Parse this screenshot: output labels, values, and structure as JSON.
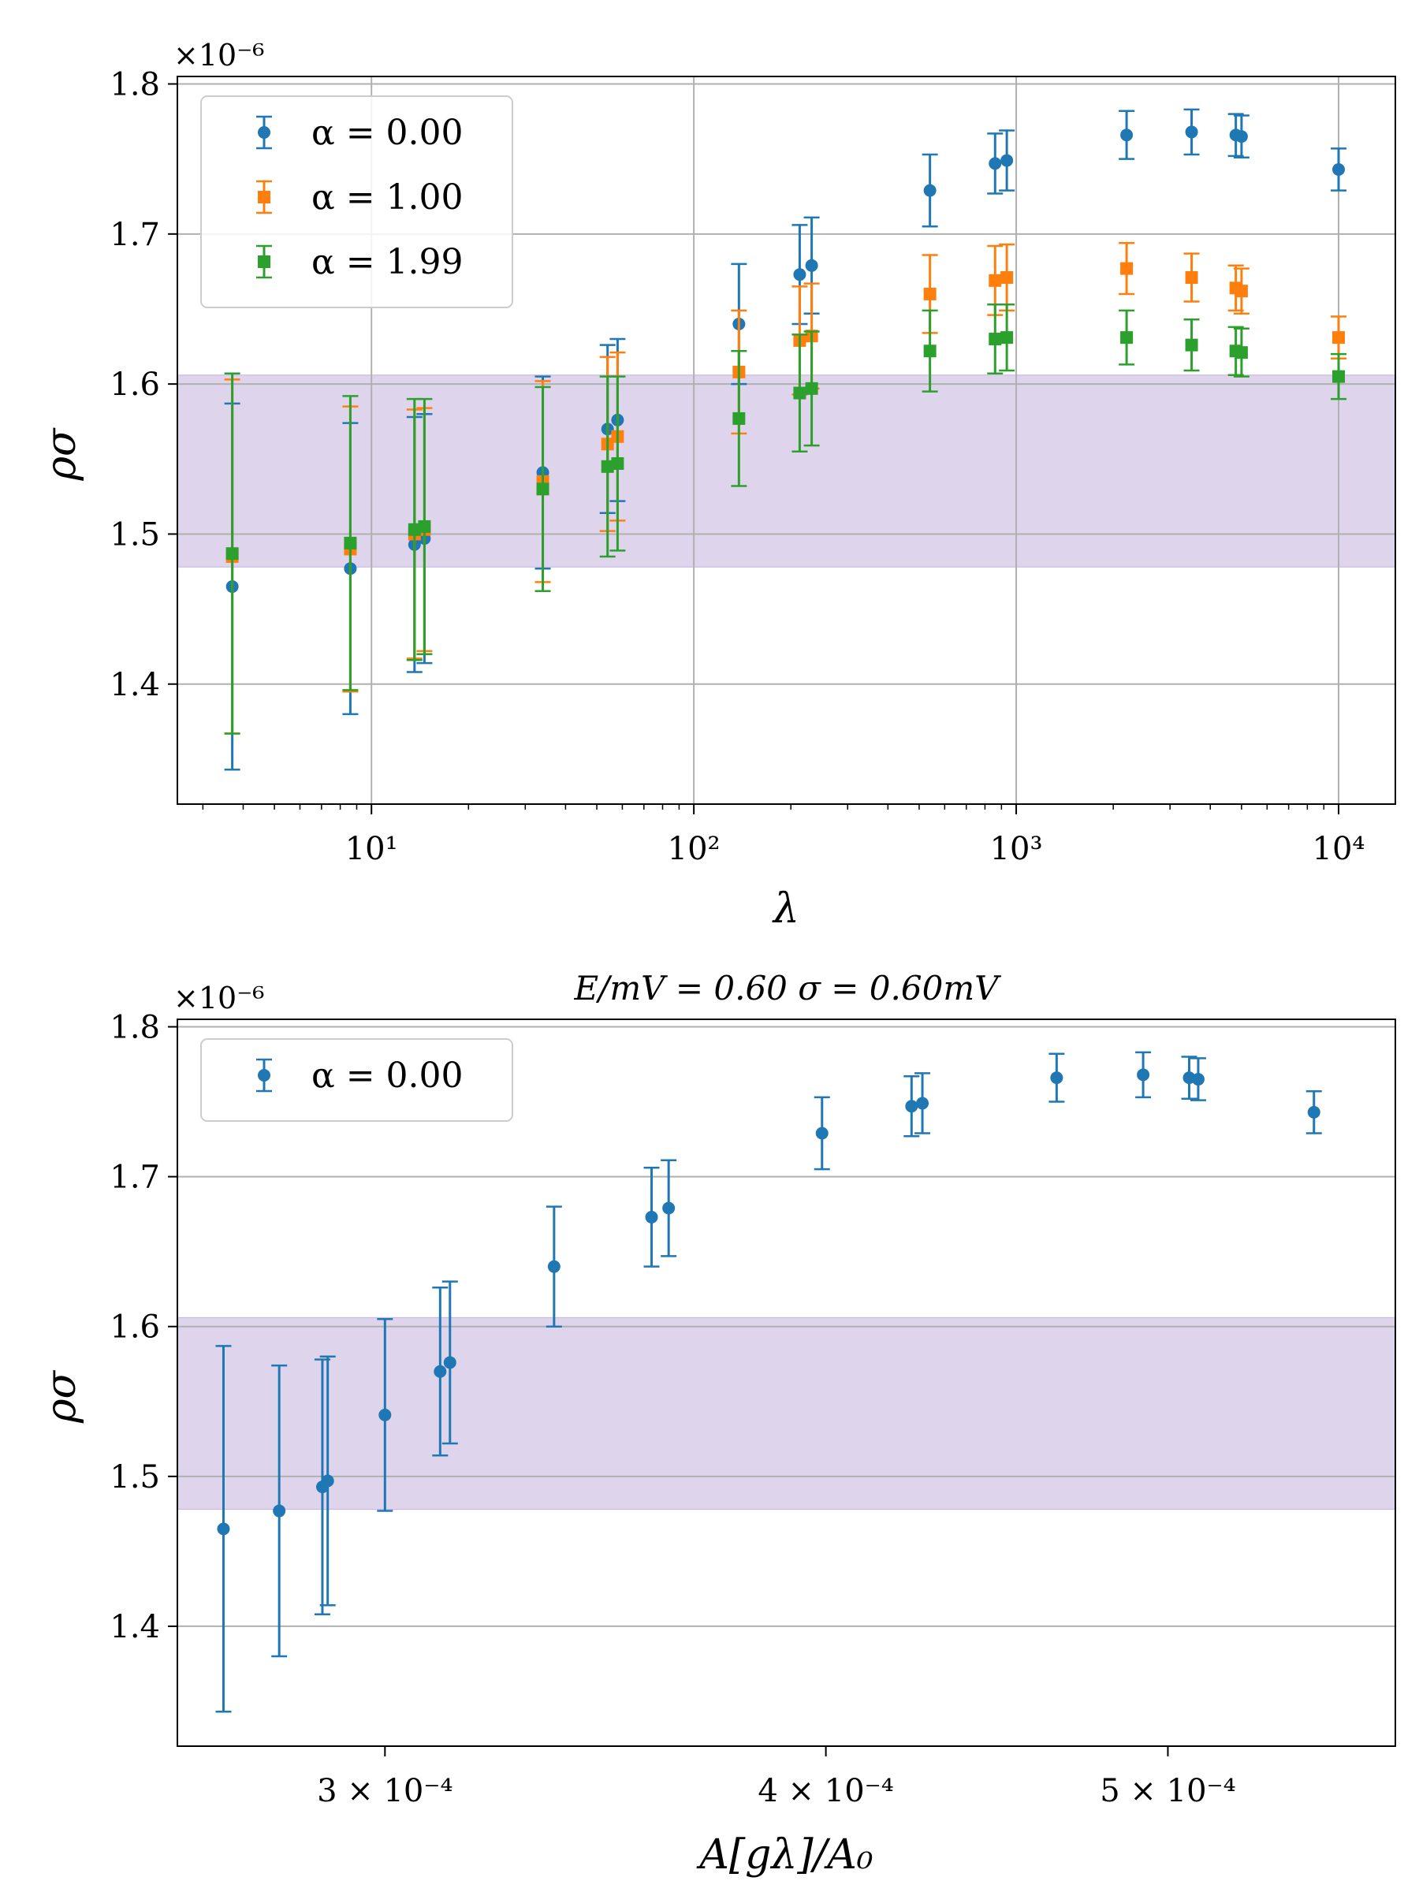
{
  "colors": {
    "series0": "#1f77b4",
    "series1": "#ff7f0e",
    "series2": "#2ca02c",
    "band_fill": "#9b7fc7",
    "grid": "#b0b0b0"
  },
  "chart_data": [
    {
      "type": "scatter",
      "x_scale": "log",
      "xlabel": "λ",
      "ylabel": "ρσ",
      "title": "",
      "y_multiplier": "×10⁻⁶",
      "xlim": [
        2.5,
        15000
      ],
      "ylim": [
        1.32,
        1.805
      ],
      "y_ticks": [
        1.4,
        1.5,
        1.6,
        1.7,
        1.8
      ],
      "y_tick_labels": [
        "1.4",
        "1.5",
        "1.6",
        "1.7",
        "1.8"
      ],
      "x_ticks": [
        10,
        100,
        1000,
        10000
      ],
      "x_tick_labels": [
        "10¹",
        "10²",
        "10³",
        "10⁴"
      ],
      "grid": true,
      "legend_position": "top-left",
      "band": {
        "low": 1.478,
        "high": 1.606
      },
      "series": [
        {
          "name": "α = 0.00",
          "marker": "circle",
          "x": [
            3.7,
            8.6,
            13.6,
            14.6,
            34,
            54,
            58,
            138,
            213,
            232,
            540,
            860,
            935,
            2200,
            3500,
            4800,
            5000,
            10000
          ],
          "y": [
            1.465,
            1.477,
            1.493,
            1.497,
            1.541,
            1.57,
            1.576,
            1.64,
            1.673,
            1.679,
            1.729,
            1.747,
            1.749,
            1.766,
            1.768,
            1.766,
            1.765,
            1.743
          ],
          "err": [
            0.122,
            0.097,
            0.085,
            0.083,
            0.064,
            0.056,
            0.054,
            0.04,
            0.033,
            0.032,
            0.024,
            0.02,
            0.02,
            0.016,
            0.015,
            0.014,
            0.014,
            0.014
          ]
        },
        {
          "name": "α = 1.00",
          "marker": "square",
          "x": [
            3.7,
            8.6,
            13.6,
            14.6,
            34,
            54,
            58,
            138,
            213,
            232,
            540,
            860,
            935,
            2200,
            3500,
            4800,
            5000,
            10000
          ],
          "y": [
            1.485,
            1.49,
            1.5,
            1.503,
            1.535,
            1.56,
            1.565,
            1.608,
            1.629,
            1.632,
            1.66,
            1.669,
            1.671,
            1.677,
            1.671,
            1.664,
            1.662,
            1.631
          ],
          "err": [
            0.118,
            0.095,
            0.083,
            0.081,
            0.067,
            0.058,
            0.056,
            0.041,
            0.036,
            0.035,
            0.026,
            0.023,
            0.022,
            0.017,
            0.016,
            0.015,
            0.015,
            0.014
          ]
        },
        {
          "name": "α = 1.99",
          "marker": "square",
          "x": [
            3.7,
            8.6,
            13.6,
            14.6,
            34,
            54,
            58,
            138,
            213,
            232,
            540,
            860,
            935,
            2200,
            3500,
            4800,
            5000,
            10000
          ],
          "y": [
            1.487,
            1.494,
            1.503,
            1.505,
            1.53,
            1.545,
            1.547,
            1.577,
            1.594,
            1.597,
            1.622,
            1.63,
            1.631,
            1.631,
            1.626,
            1.622,
            1.621,
            1.605
          ],
          "err": [
            0.12,
            0.098,
            0.087,
            0.085,
            0.068,
            0.06,
            0.058,
            0.045,
            0.039,
            0.038,
            0.027,
            0.023,
            0.022,
            0.018,
            0.017,
            0.016,
            0.016,
            0.015
          ]
        }
      ]
    },
    {
      "type": "scatter",
      "x_scale": "log",
      "xlabel": "A[gλ]/A₀",
      "ylabel": "ρσ",
      "title": "E/mV = 0.60 σ = 0.60mV",
      "y_multiplier": "×10⁻⁶",
      "xlim": [
        0.000262,
        0.00058
      ],
      "ylim": [
        1.32,
        1.805
      ],
      "y_ticks": [
        1.4,
        1.5,
        1.6,
        1.7,
        1.8
      ],
      "y_tick_labels": [
        "1.4",
        "1.5",
        "1.6",
        "1.7",
        "1.8"
      ],
      "x_ticks": [
        0.0003,
        0.0004,
        0.0005
      ],
      "x_tick_labels": [
        "3 × 10⁻⁴",
        "4 × 10⁻⁴",
        "5 × 10⁻⁴"
      ],
      "grid": true,
      "legend_position": "top-left",
      "band": {
        "low": 1.478,
        "high": 1.606
      },
      "series": [
        {
          "name": "α = 0.00",
          "marker": "circle",
          "x": [
            0.00027,
            0.00028,
            0.000288,
            0.000289,
            0.0003,
            0.000311,
            0.000313,
            0.000335,
            0.000357,
            0.000361,
            0.000399,
            0.000423,
            0.000426,
            0.000465,
            0.000492,
            0.000507,
            0.00051,
            0.00055
          ],
          "y": [
            1.465,
            1.477,
            1.493,
            1.497,
            1.541,
            1.57,
            1.576,
            1.64,
            1.673,
            1.679,
            1.729,
            1.747,
            1.749,
            1.766,
            1.768,
            1.766,
            1.765,
            1.743
          ],
          "err": [
            0.122,
            0.097,
            0.085,
            0.083,
            0.064,
            0.056,
            0.054,
            0.04,
            0.033,
            0.032,
            0.024,
            0.02,
            0.02,
            0.016,
            0.015,
            0.014,
            0.014,
            0.014
          ]
        }
      ]
    }
  ]
}
